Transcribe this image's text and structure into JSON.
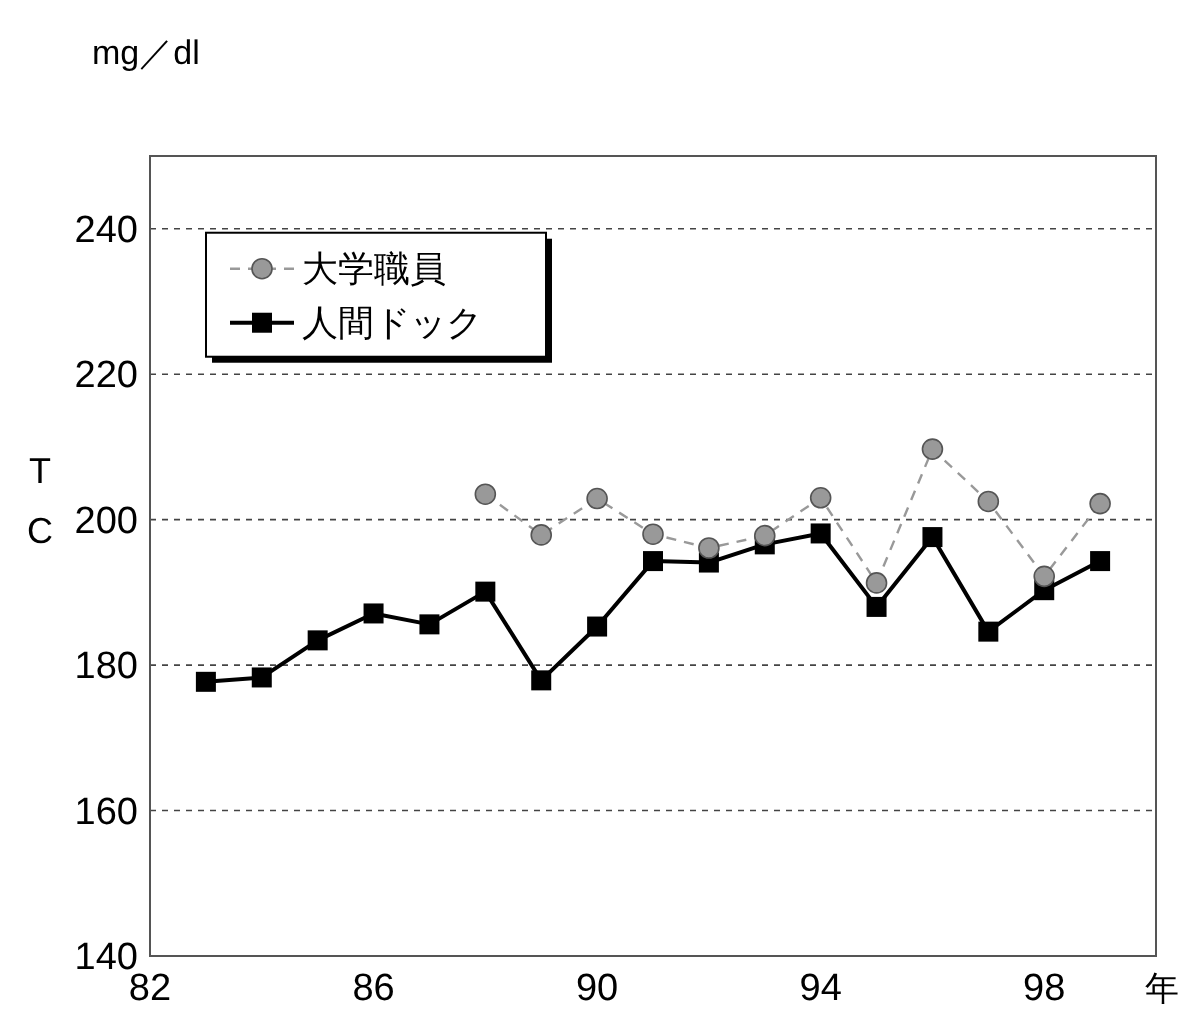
{
  "chart_data": {
    "type": "line",
    "xlabel": "年",
    "ylabel": "TC",
    "annotations": [
      "mg／dl"
    ],
    "xlim": [
      82,
      100
    ],
    "xticks": [
      82,
      86,
      90,
      94,
      98
    ],
    "ylim": [
      140,
      250
    ],
    "yticks": [
      140,
      160,
      180,
      200,
      220,
      240
    ],
    "grid": "y",
    "legend": "top left",
    "series": [
      {
        "name": "大学職員",
        "color": "#999999",
        "marker": "circle",
        "line_style": "dashed",
        "x": [
          88,
          89,
          90,
          91,
          92,
          93,
          94,
          95,
          96,
          97,
          98,
          99
        ],
        "values": [
          203.5,
          197.9,
          202.9,
          198,
          196.1,
          197.8,
          203,
          191.3,
          209.7,
          202.5,
          192.2,
          202.2
        ]
      },
      {
        "name": "人間ドック",
        "color": "#000000",
        "marker": "square",
        "line_style": "solid",
        "x": [
          83,
          84,
          85,
          86,
          87,
          88,
          89,
          90,
          91,
          92,
          93,
          94,
          95,
          96,
          97,
          98,
          99
        ],
        "values": [
          177.7,
          178.3,
          183.4,
          187.1,
          185.6,
          190.1,
          177.9,
          185.3,
          194.3,
          194.1,
          196.6,
          198.1,
          188,
          197.6,
          184.6,
          190.3,
          194.3
        ]
      }
    ]
  }
}
